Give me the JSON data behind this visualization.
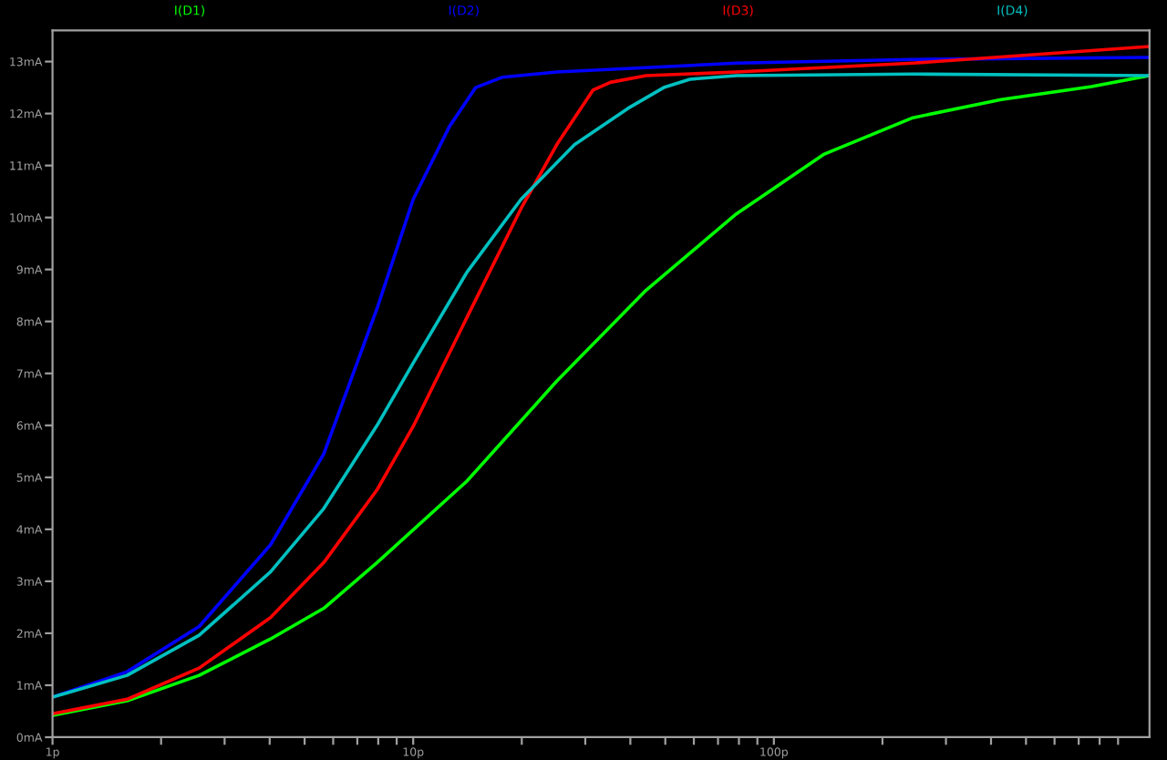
{
  "chart_data": {
    "type": "line",
    "log": "x",
    "grid": false,
    "legend": "top",
    "line_style": "solid",
    "marker": "none",
    "xlim": [
      1,
      1100
    ],
    "ylim": [
      0,
      13.6
    ],
    "xticks": [
      {
        "value": 1,
        "label": "1p"
      },
      {
        "value": 2,
        "label": null
      },
      {
        "value": 3,
        "label": null
      },
      {
        "value": 4,
        "label": null
      },
      {
        "value": 5,
        "label": null
      },
      {
        "value": 6,
        "label": null
      },
      {
        "value": 7,
        "label": null
      },
      {
        "value": 8,
        "label": null
      },
      {
        "value": 9,
        "label": null
      },
      {
        "value": 10,
        "label": "10p"
      },
      {
        "value": 20,
        "label": null
      },
      {
        "value": 30,
        "label": null
      },
      {
        "value": 40,
        "label": null
      },
      {
        "value": 50,
        "label": null
      },
      {
        "value": 60,
        "label": null
      },
      {
        "value": 70,
        "label": null
      },
      {
        "value": 80,
        "label": null
      },
      {
        "value": 90,
        "label": null
      },
      {
        "value": 100,
        "label": "100p"
      },
      {
        "value": 200,
        "label": null
      },
      {
        "value": 300,
        "label": null
      },
      {
        "value": 400,
        "label": null
      },
      {
        "value": 500,
        "label": null
      },
      {
        "value": 600,
        "label": null
      },
      {
        "value": 700,
        "label": null
      },
      {
        "value": 800,
        "label": null
      },
      {
        "value": 900,
        "label": null
      }
    ],
    "yticks": [
      {
        "value": 0,
        "label": "0mA"
      },
      {
        "value": 1,
        "label": "1mA"
      },
      {
        "value": 2,
        "label": "2mA"
      },
      {
        "value": 3,
        "label": "3mA"
      },
      {
        "value": 4,
        "label": "4mA"
      },
      {
        "value": 5,
        "label": "5mA"
      },
      {
        "value": 6,
        "label": "6mA"
      },
      {
        "value": 7,
        "label": "7mA"
      },
      {
        "value": 8,
        "label": "8mA"
      },
      {
        "value": 9,
        "label": "9mA"
      },
      {
        "value": 10,
        "label": "10mA"
      },
      {
        "value": 11,
        "label": "11mA"
      },
      {
        "value": 12,
        "label": "12mA"
      },
      {
        "value": 13,
        "label": "13mA"
      }
    ],
    "series": [
      {
        "name": "I(D1)",
        "color": "#00ff00",
        "x": [
          1,
          1.61,
          2.55,
          4.02,
          5.65,
          7.94,
          14.1,
          25.0,
          44.2,
          78.7,
          138,
          243,
          427,
          760,
          1100
        ],
        "values": [
          0.42,
          0.7,
          1.19,
          1.89,
          2.48,
          3.36,
          4.93,
          6.85,
          8.6,
          10.07,
          11.22,
          11.92,
          12.27,
          12.52,
          12.73
        ]
      },
      {
        "name": "I(D2)",
        "color": "#0000ff",
        "x": [
          1,
          1.61,
          2.55,
          4.02,
          5.65,
          7.94,
          10,
          12.6,
          14.9,
          17.7,
          25.0,
          78.7,
          243,
          1100
        ],
        "values": [
          0.77,
          1.26,
          2.13,
          3.7,
          5.45,
          8.25,
          10.35,
          11.75,
          12.5,
          12.7,
          12.8,
          12.97,
          13.04,
          13.08
        ]
      },
      {
        "name": "I(D3)",
        "color": "#ff0000",
        "x": [
          1,
          1.61,
          2.55,
          4.02,
          5.65,
          7.94,
          10,
          14.1,
          19.9,
          25.0,
          31.5,
          35.2,
          44.2,
          78.7,
          243,
          1100
        ],
        "values": [
          0.45,
          0.73,
          1.33,
          2.3,
          3.36,
          4.76,
          5.98,
          8.08,
          10.17,
          11.4,
          12.45,
          12.6,
          12.73,
          12.8,
          12.97,
          13.29
        ]
      },
      {
        "name": "I(D4)",
        "color": "#00c0c0",
        "x": [
          1,
          1.61,
          2.55,
          4.02,
          5.65,
          7.94,
          10,
          14.1,
          19.9,
          28.0,
          39.4,
          49.5,
          58.5,
          78.7,
          243,
          1100
        ],
        "values": [
          0.77,
          1.19,
          1.96,
          3.18,
          4.4,
          6.0,
          7.2,
          8.95,
          10.35,
          11.4,
          12.1,
          12.5,
          12.66,
          12.73,
          12.76,
          12.73
        ]
      }
    ]
  }
}
